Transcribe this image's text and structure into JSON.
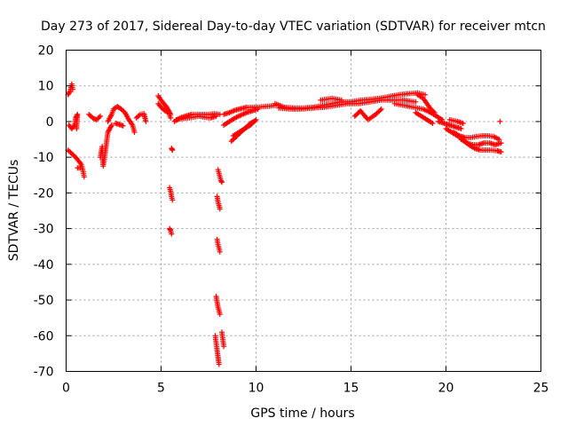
{
  "chart_data": {
    "type": "scatter",
    "title": "Day 273 of 2017, Sidereal Day-to-day VTEC variation (SDTVAR) for receiver mtcn",
    "xlabel": "GPS time / hours",
    "ylabel": "SDTVAR / TECUs",
    "xlim": [
      0,
      25
    ],
    "ylim": [
      -70,
      20
    ],
    "xticks": [
      "0",
      "5",
      "10",
      "15",
      "20",
      "25"
    ],
    "yticks": [
      "-70",
      "-60",
      "-50",
      "-40",
      "-30",
      "-20",
      "-10",
      "0",
      "10",
      "20"
    ],
    "grid": true,
    "marker": "plus",
    "series": [
      {
        "name": "SDTVAR",
        "color": "#ff0000",
        "segments": [
          [
            [
              0.1,
              7.5
            ],
            [
              0.2,
              8.5
            ],
            [
              0.3,
              10.5
            ],
            [
              0.35,
              9
            ]
          ],
          [
            [
              0.15,
              -1
            ],
            [
              0.3,
              -2
            ],
            [
              0.45,
              -1
            ],
            [
              0.5,
              1
            ],
            [
              0.6,
              2
            ],
            [
              0.55,
              -2
            ]
          ],
          [
            [
              0.1,
              -8
            ],
            [
              0.3,
              -9
            ],
            [
              0.5,
              -10
            ],
            [
              0.65,
              -11
            ],
            [
              0.8,
              -12
            ],
            [
              0.9,
              -14
            ],
            [
              0.95,
              -15.5
            ]
          ],
          [
            [
              0.6,
              -13
            ],
            [
              0.75,
              -13
            ]
          ],
          [
            [
              1.2,
              2
            ],
            [
              1.4,
              1
            ],
            [
              1.6,
              0.5
            ],
            [
              1.8,
              1.5
            ]
          ],
          [
            [
              1.8,
              -10
            ],
            [
              1.9,
              -7
            ],
            [
              1.95,
              -12.5
            ],
            [
              2.0,
              -11
            ],
            [
              2.1,
              -7
            ],
            [
              2.2,
              -3
            ],
            [
              2.3,
              -2
            ],
            [
              2.4,
              -1
            ]
          ],
          [
            [
              2.2,
              0
            ],
            [
              2.4,
              2
            ],
            [
              2.5,
              3.5
            ],
            [
              2.7,
              4.2
            ],
            [
              2.9,
              3.5
            ],
            [
              3.1,
              2.5
            ],
            [
              3.3,
              0.5
            ],
            [
              3.5,
              -1
            ],
            [
              3.6,
              -3
            ]
          ],
          [
            [
              3.7,
              1
            ],
            [
              3.9,
              2
            ],
            [
              4.1,
              2.2
            ],
            [
              4.2,
              0
            ]
          ],
          [
            [
              2.6,
              -0.5
            ],
            [
              2.8,
              -0.8
            ],
            [
              3.0,
              -1.2
            ]
          ],
          [
            [
              4.85,
              7.2
            ],
            [
              5.0,
              6
            ],
            [
              5.15,
              5
            ],
            [
              5.3,
              4
            ],
            [
              5.4,
              3
            ],
            [
              5.5,
              2
            ]
          ],
          [
            [
              4.85,
              5
            ],
            [
              5.0,
              4
            ],
            [
              5.2,
              3
            ],
            [
              5.4,
              2.5
            ],
            [
              5.5,
              1
            ]
          ],
          [
            [
              5.55,
              -7.5
            ],
            [
              5.6,
              -8
            ]
          ],
          [
            [
              5.45,
              -18.5
            ],
            [
              5.5,
              -19.5
            ],
            [
              5.55,
              -21
            ],
            [
              5.6,
              -22
            ]
          ],
          [
            [
              5.45,
              -30
            ],
            [
              5.5,
              -30.5
            ],
            [
              5.55,
              -31.5
            ]
          ],
          [
            [
              5.7,
              0
            ],
            [
              6.0,
              1
            ],
            [
              6.3,
              1.5
            ],
            [
              6.6,
              2
            ],
            [
              6.9,
              2
            ],
            [
              7.2,
              2
            ],
            [
              7.5,
              2
            ],
            [
              7.8,
              2.2
            ],
            [
              8.1,
              2
            ]
          ],
          [
            [
              5.8,
              0.5
            ],
            [
              6.1,
              0.8
            ],
            [
              6.4,
              1
            ],
            [
              6.7,
              1.2
            ],
            [
              7.0,
              1.5
            ],
            [
              7.3,
              1.2
            ],
            [
              7.6,
              1
            ],
            [
              7.9,
              1.5
            ]
          ],
          [
            [
              8.0,
              -13.5
            ],
            [
              8.05,
              -14.5
            ],
            [
              8.1,
              -15.5
            ],
            [
              8.15,
              -16.5
            ],
            [
              8.2,
              -17
            ]
          ],
          [
            [
              7.95,
              -21
            ],
            [
              8.0,
              -22.5
            ],
            [
              8.05,
              -23.5
            ],
            [
              8.1,
              -24.5
            ]
          ],
          [
            [
              7.95,
              -33
            ],
            [
              8.0,
              -34.5
            ],
            [
              8.05,
              -35.5
            ],
            [
              8.1,
              -36.5
            ]
          ],
          [
            [
              7.9,
              -49
            ],
            [
              7.95,
              -50.5
            ],
            [
              8.0,
              -52
            ],
            [
              8.05,
              -53
            ],
            [
              8.1,
              -54
            ]
          ],
          [
            [
              7.85,
              -60
            ],
            [
              7.9,
              -62
            ],
            [
              7.95,
              -64
            ],
            [
              8.0,
              -66
            ],
            [
              8.05,
              -68
            ]
          ],
          [
            [
              8.2,
              -59
            ],
            [
              8.25,
              -61
            ],
            [
              8.3,
              -63
            ]
          ],
          [
            [
              8.3,
              2
            ],
            [
              8.6,
              2.5
            ],
            [
              8.9,
              3.2
            ],
            [
              9.2,
              3.6
            ],
            [
              9.5,
              4
            ],
            [
              9.8,
              4
            ],
            [
              10.1,
              4
            ],
            [
              10.4,
              4.2
            ],
            [
              10.7,
              4.3
            ],
            [
              11.0,
              4.5
            ]
          ],
          [
            [
              8.3,
              -1
            ],
            [
              8.6,
              0
            ],
            [
              8.9,
              1
            ],
            [
              9.2,
              1.8
            ],
            [
              9.5,
              2.5
            ],
            [
              9.8,
              3
            ],
            [
              10.1,
              3.5
            ]
          ],
          [
            [
              8.7,
              -5.5
            ],
            [
              8.9,
              -4.5
            ],
            [
              9.1,
              -3.5
            ],
            [
              9.3,
              -2.5
            ],
            [
              9.5,
              -1.5
            ],
            [
              9.7,
              -0.5
            ],
            [
              9.9,
              0
            ]
          ],
          [
            [
              8.8,
              -4
            ],
            [
              9.1,
              -3
            ],
            [
              9.4,
              -2
            ],
            [
              9.7,
              -1
            ],
            [
              10.0,
              0.5
            ]
          ],
          [
            [
              11.0,
              5
            ],
            [
              11.5,
              4
            ],
            [
              12.0,
              3.8
            ],
            [
              12.5,
              3.8
            ],
            [
              13.0,
              4
            ],
            [
              13.5,
              4.5
            ],
            [
              14.0,
              5
            ],
            [
              14.5,
              5.5
            ],
            [
              15.0,
              5.5
            ],
            [
              15.5,
              6
            ],
            [
              16.0,
              6.2
            ],
            [
              16.5,
              6.5
            ],
            [
              17.0,
              7
            ],
            [
              17.5,
              7.5
            ],
            [
              18.0,
              7.8
            ],
            [
              18.5,
              8
            ],
            [
              18.9,
              7.5
            ]
          ],
          [
            [
              11.2,
              3.8
            ],
            [
              11.8,
              3.5
            ],
            [
              12.4,
              3.5
            ],
            [
              13.0,
              3.8
            ],
            [
              13.6,
              4
            ],
            [
              14.2,
              4.5
            ],
            [
              14.8,
              5
            ],
            [
              15.4,
              5
            ],
            [
              16.0,
              5.5
            ],
            [
              16.6,
              6
            ],
            [
              17.2,
              6
            ],
            [
              17.8,
              6
            ],
            [
              18.4,
              5.5
            ]
          ],
          [
            [
              15.2,
              1.5
            ],
            [
              15.5,
              3
            ],
            [
              15.9,
              0.5
            ],
            [
              16.3,
              2
            ],
            [
              16.6,
              3.5
            ]
          ],
          [
            [
              13.4,
              6
            ],
            [
              14.0,
              6.5
            ],
            [
              14.5,
              6
            ]
          ],
          [
            [
              17.3,
              5
            ],
            [
              17.8,
              4.5
            ],
            [
              18.3,
              4
            ],
            [
              18.8,
              3.5
            ],
            [
              19.2,
              2.5
            ],
            [
              19.5,
              1.5
            ],
            [
              19.8,
              0.5
            ]
          ],
          [
            [
              18.5,
              7.5
            ],
            [
              18.8,
              6.5
            ],
            [
              19.0,
              5
            ],
            [
              19.2,
              3.5
            ],
            [
              19.4,
              2.5
            ]
          ],
          [
            [
              18.4,
              2.5
            ],
            [
              18.7,
              1.5
            ],
            [
              19.0,
              0.5
            ],
            [
              19.3,
              -0.5
            ]
          ],
          [
            [
              19.6,
              0
            ],
            [
              19.9,
              -0.5
            ],
            [
              20.2,
              -1
            ],
            [
              20.5,
              -1.5
            ],
            [
              20.8,
              -2
            ]
          ],
          [
            [
              20.2,
              0.5
            ],
            [
              20.6,
              0
            ],
            [
              20.9,
              -0.5
            ]
          ],
          [
            [
              20.0,
              -2
            ],
            [
              20.3,
              -3
            ],
            [
              20.6,
              -4
            ],
            [
              20.9,
              -5
            ],
            [
              21.2,
              -6.5
            ],
            [
              21.5,
              -7.5
            ],
            [
              21.8,
              -8
            ],
            [
              22.1,
              -8
            ],
            [
              22.4,
              -8
            ],
            [
              22.7,
              -8.2
            ],
            [
              22.9,
              -8.5
            ]
          ],
          [
            [
              20.4,
              -3
            ],
            [
              20.7,
              -4
            ],
            [
              21.0,
              -4.5
            ],
            [
              21.3,
              -4.5
            ],
            [
              21.6,
              -4.2
            ],
            [
              21.9,
              -4
            ],
            [
              22.2,
              -4
            ],
            [
              22.5,
              -4.2
            ],
            [
              22.8,
              -5
            ]
          ],
          [
            [
              20.8,
              -5
            ],
            [
              21.1,
              -6
            ],
            [
              21.4,
              -6.5
            ],
            [
              21.7,
              -6.5
            ],
            [
              22.0,
              -6
            ],
            [
              22.3,
              -6
            ],
            [
              22.6,
              -6.5
            ],
            [
              22.9,
              -6
            ]
          ],
          [
            [
              22.85,
              0
            ]
          ]
        ]
      }
    ]
  }
}
